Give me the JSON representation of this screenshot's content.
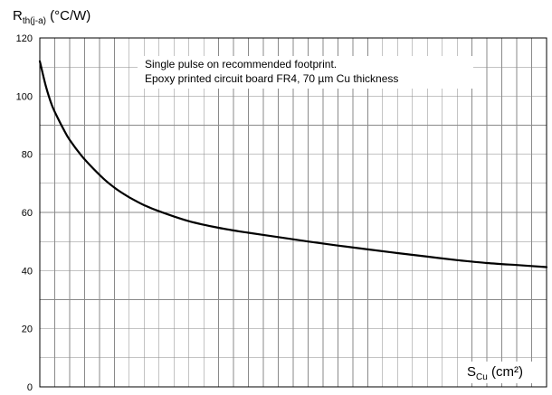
{
  "chart_data": {
    "type": "line",
    "title": "",
    "ylabel": {
      "main": "R",
      "sub": "th(j-a)",
      "unit": " (°C/W)"
    },
    "xlabel": {
      "main": "S",
      "sub": "Cu",
      "unit": " (cm²)"
    },
    "annotation": [
      "Single pulse on recommended footprint.",
      "Epoxy printed circuit board FR4, 70 µm Cu thickness"
    ],
    "xlim": [
      0,
      17
    ],
    "ylim": [
      0,
      120
    ],
    "yticks": [
      "0",
      "20",
      "40",
      "60",
      "80",
      "100",
      "120"
    ],
    "x_tick_labels_shown": false,
    "grid": true,
    "series": [
      {
        "x": [
          0.0,
          0.2,
          0.4,
          0.6,
          0.8,
          1.0,
          1.4,
          1.8,
          2.2,
          2.6,
          3.0,
          3.5,
          4.0,
          5.0,
          6.0,
          7.0,
          8.0,
          9.0,
          10.0,
          11.0,
          12.0,
          13.0,
          14.0,
          15.0,
          16.0,
          17.0
        ],
        "y": [
          112.0,
          103.5,
          97.0,
          92.5,
          88.5,
          85.0,
          79.5,
          75.0,
          71.0,
          67.8,
          65.2,
          62.5,
          60.4,
          57.0,
          54.7,
          53.0,
          51.5,
          50.0,
          48.6,
          47.3,
          46.0,
          44.8,
          43.6,
          42.6,
          41.9,
          41.2
        ]
      }
    ]
  }
}
